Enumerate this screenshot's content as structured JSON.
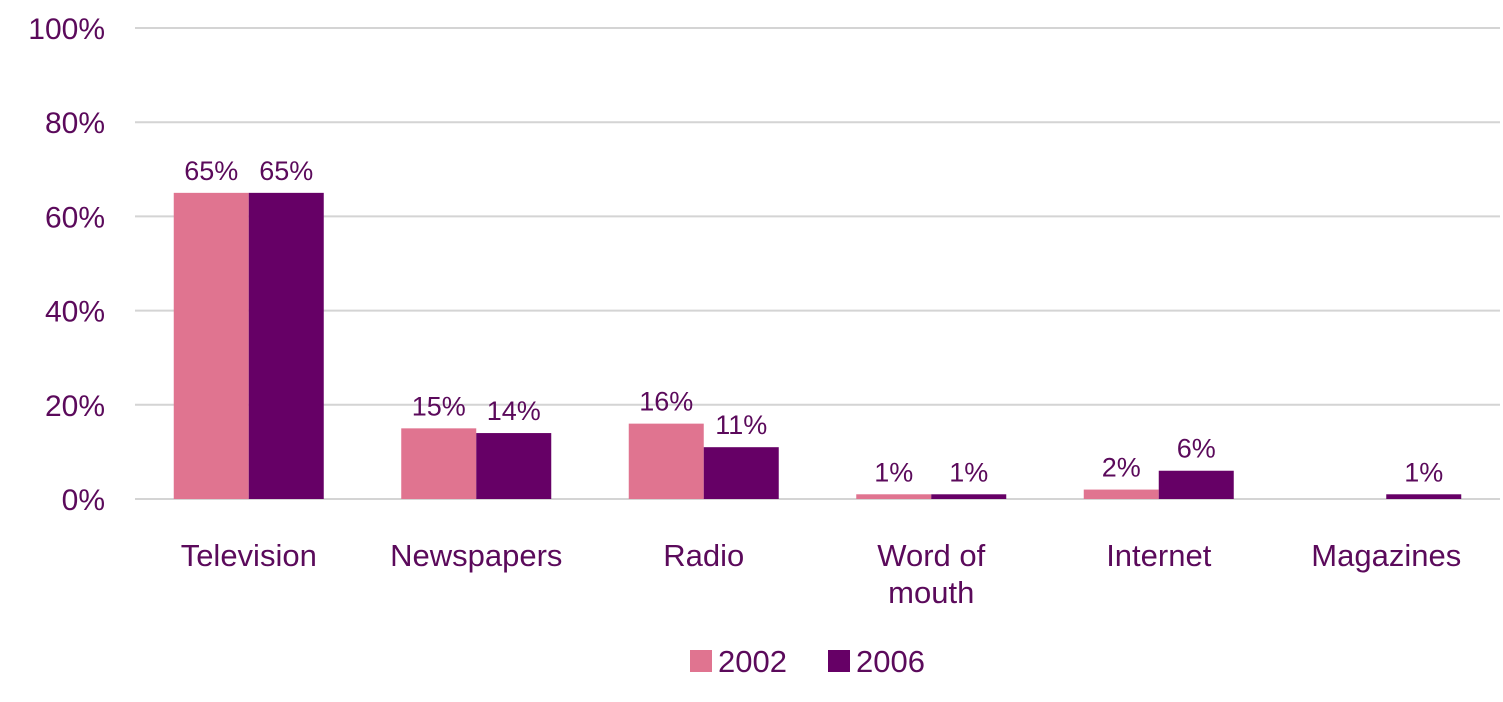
{
  "chart_data": {
    "type": "bar",
    "title": "",
    "xlabel": "",
    "ylabel": "",
    "categories": [
      [
        "Television"
      ],
      [
        "Newspapers"
      ],
      [
        "Radio"
      ],
      [
        "Word of",
        "mouth"
      ],
      [
        "Internet"
      ],
      [
        "Magazines"
      ]
    ],
    "series": [
      {
        "name": "2002",
        "color": "#e07490",
        "values": [
          65,
          15,
          16,
          1,
          2,
          null
        ],
        "labels": [
          "65%",
          "15%",
          "16%",
          "1%",
          "2%",
          ""
        ]
      },
      {
        "name": "2006",
        "color": "#660066",
        "values": [
          65,
          14,
          11,
          1,
          6,
          1
        ],
        "labels": [
          "65%",
          "14%",
          "11%",
          "1%",
          "6%",
          "1%"
        ]
      }
    ],
    "ylim": [
      0,
      100
    ],
    "yticks": [
      0,
      20,
      40,
      60,
      80,
      100
    ],
    "ytick_labels": [
      "0%",
      "20%",
      "40%",
      "60%",
      "80%",
      "100%"
    ],
    "grid": true,
    "legend_position": "bottom-center",
    "colors": {
      "text": "#5b0a5b",
      "grid": "#d4d4d4"
    }
  }
}
